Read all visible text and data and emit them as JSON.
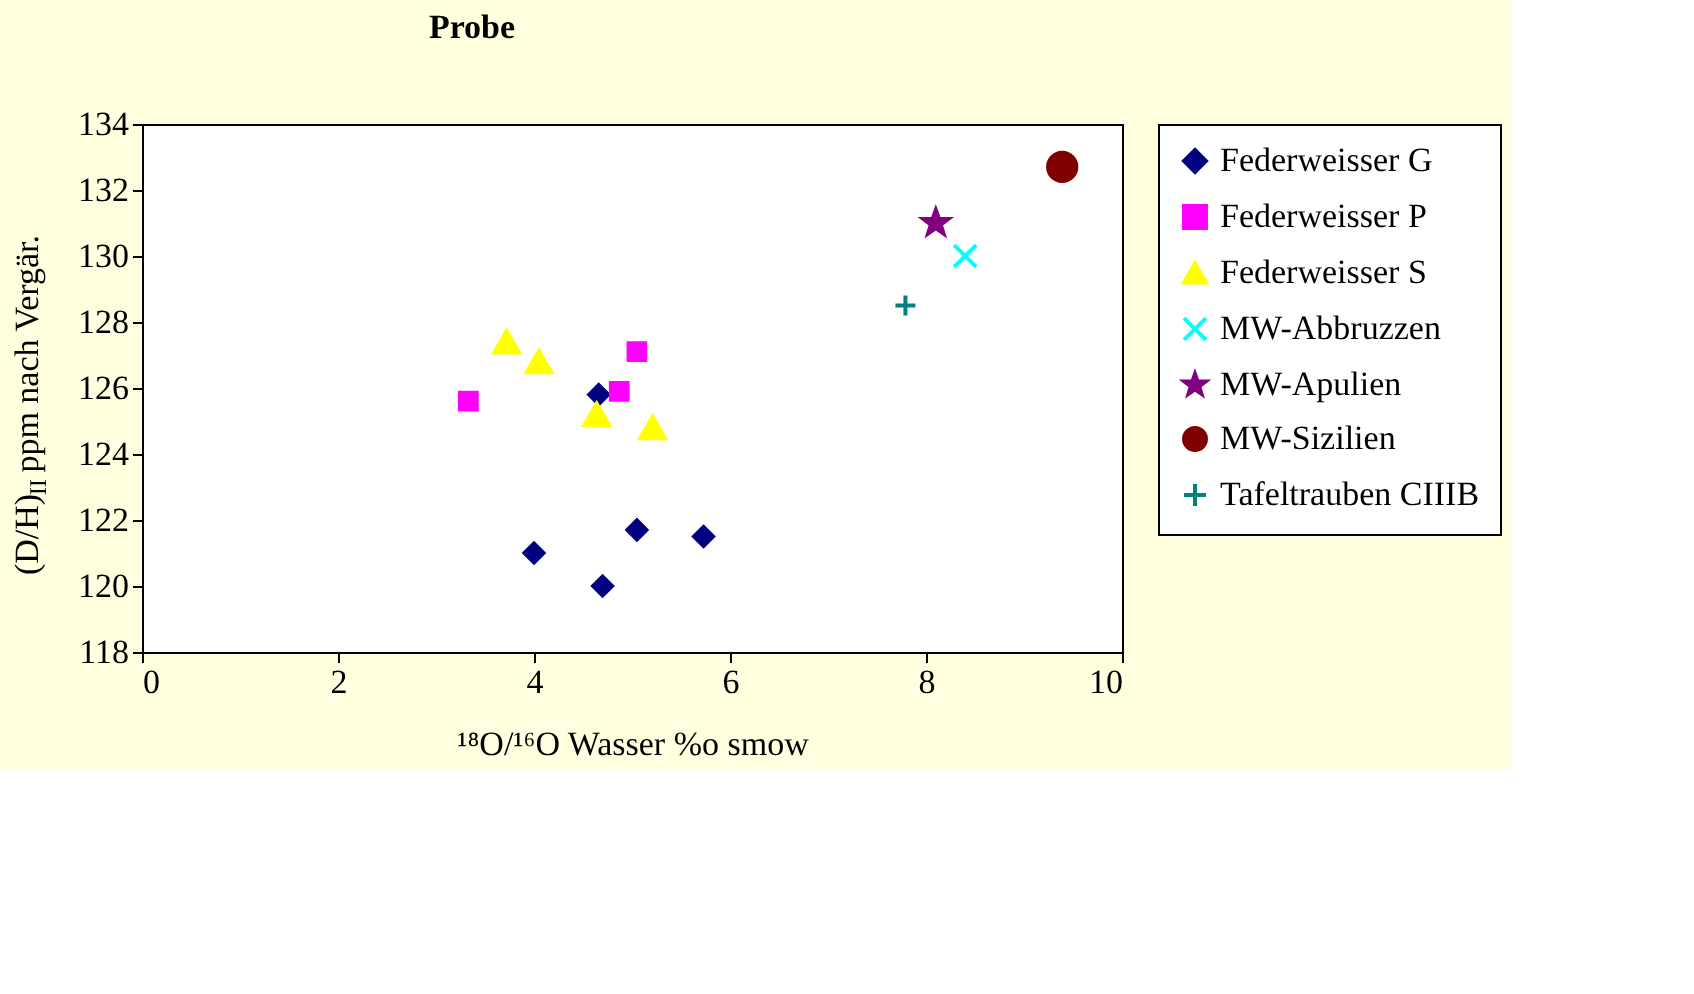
{
  "chart_data": {
    "type": "scatter",
    "title": "Probe",
    "xlabel": "¹⁸O/¹⁶O Wasser %o smow",
    "ylabel": "(D/H)$_{II}$ ppm nach Vergär.",
    "xlim": [
      0,
      10
    ],
    "xticks": [
      0,
      2,
      4,
      6,
      8,
      10
    ],
    "ylim": [
      118,
      134
    ],
    "yticks": [
      118,
      120,
      122,
      124,
      126,
      128,
      130,
      132,
      134
    ],
    "grid": false,
    "legend": "right",
    "series": [
      {
        "name": "Federweisser G",
        "color": "#000080",
        "marker": "diamond",
        "x": [
          4.0,
          4.7,
          5.05,
          5.73,
          4.66
        ],
        "values": [
          121.0,
          120.0,
          121.7,
          121.5,
          125.8
        ]
      },
      {
        "name": "Federweisser P",
        "color": "#ff00ff",
        "marker": "square",
        "x": [
          3.33,
          4.87,
          5.05
        ],
        "values": [
          125.6,
          125.9,
          127.1
        ]
      },
      {
        "name": "Federweisser S",
        "color": "#ffff00",
        "marker": "triangle",
        "x": [
          3.72,
          4.05,
          4.64,
          5.21
        ],
        "values": [
          127.4,
          126.8,
          125.2,
          124.8
        ]
      },
      {
        "name": "MW-Abbruzzen",
        "color": "#00ffff",
        "marker": "x",
        "x": [
          8.4
        ],
        "values": [
          130.0
        ]
      },
      {
        "name": "MW-Apulien",
        "color": "#800080",
        "marker": "star",
        "x": [
          8.1
        ],
        "values": [
          131.0
        ]
      },
      {
        "name": "MW-Sizilien",
        "color": "#800000",
        "marker": "circle",
        "x": [
          9.39
        ],
        "values": [
          132.7
        ]
      },
      {
        "name": "Tafeltrauben CIIIB",
        "color": "#008080",
        "marker": "cross",
        "x": [
          7.79
        ],
        "values": [
          128.5
        ]
      }
    ]
  }
}
